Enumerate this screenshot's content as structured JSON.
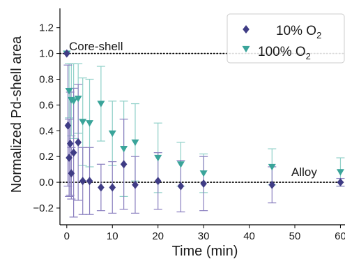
{
  "chart_data": {
    "type": "scatter",
    "xlabel": "Time (min)",
    "ylabel": "Normalized Pd-shell area",
    "xlim": [
      -1.5,
      61
    ],
    "ylim": [
      -0.33,
      1.35
    ],
    "xticks": [
      0,
      10,
      20,
      30,
      40,
      50,
      60
    ],
    "yticks": [
      -0.2,
      0.0,
      0.2,
      0.4,
      0.6,
      0.8,
      1.0,
      1.2
    ],
    "xtick_labels": [
      "0",
      "10",
      "20",
      "30",
      "40",
      "50",
      "60"
    ],
    "ytick_labels": [
      "−0.2",
      "0.0",
      "0.2",
      "0.4",
      "0.6",
      "0.8",
      "1.0",
      "1.2"
    ],
    "grid": false,
    "legend_position": "top-right",
    "reference_lines": [
      {
        "y": 1.0,
        "label": "Core-shell",
        "style": "dotted"
      },
      {
        "y": 0.0,
        "label": "Alloy",
        "style": "dotted"
      }
    ],
    "series": [
      {
        "name": "10% O",
        "name_subscript": "2",
        "marker": "diamond",
        "color": "#3f3c85",
        "error_color": "#8a7fbf",
        "x": [
          0,
          0.25,
          0.5,
          0.75,
          1.0,
          1.5,
          2.5,
          3.5,
          5,
          7.5,
          10,
          12.5,
          15,
          20,
          25,
          30,
          45,
          60
        ],
        "y": [
          1.0,
          0.44,
          0.19,
          0.3,
          0.07,
          0.23,
          0.31,
          0.01,
          0.01,
          -0.04,
          -0.04,
          0.14,
          -0.02,
          0.01,
          -0.03,
          -0.01,
          -0.02,
          0.0
        ],
        "err": [
          0.0,
          0.47,
          0.3,
          0.4,
          0.2,
          0.5,
          0.45,
          0.26,
          0.26,
          0.18,
          0.2,
          0.35,
          0.22,
          0.22,
          0.2,
          0.21,
          0.14,
          0.03
        ]
      },
      {
        "name": "100% O",
        "name_subscript": "2",
        "marker": "triangle-down",
        "color": "#3aa49a",
        "error_color": "#8fd0c8",
        "x": [
          0,
          0.5,
          1.0,
          1.5,
          2.5,
          3.5,
          5,
          7.5,
          10,
          12.5,
          15,
          20,
          25,
          30,
          45,
          60
        ],
        "y": [
          1.0,
          0.71,
          0.64,
          0.63,
          0.65,
          0.47,
          0.46,
          0.61,
          0.38,
          0.26,
          0.31,
          0.19,
          0.14,
          0.07,
          0.12,
          0.08
        ],
        "err": [
          0.0,
          0.21,
          0.28,
          0.29,
          0.27,
          0.34,
          0.34,
          0.29,
          0.25,
          0.37,
          0.3,
          0.27,
          0.17,
          0.15,
          0.14,
          0.11
        ]
      }
    ]
  }
}
